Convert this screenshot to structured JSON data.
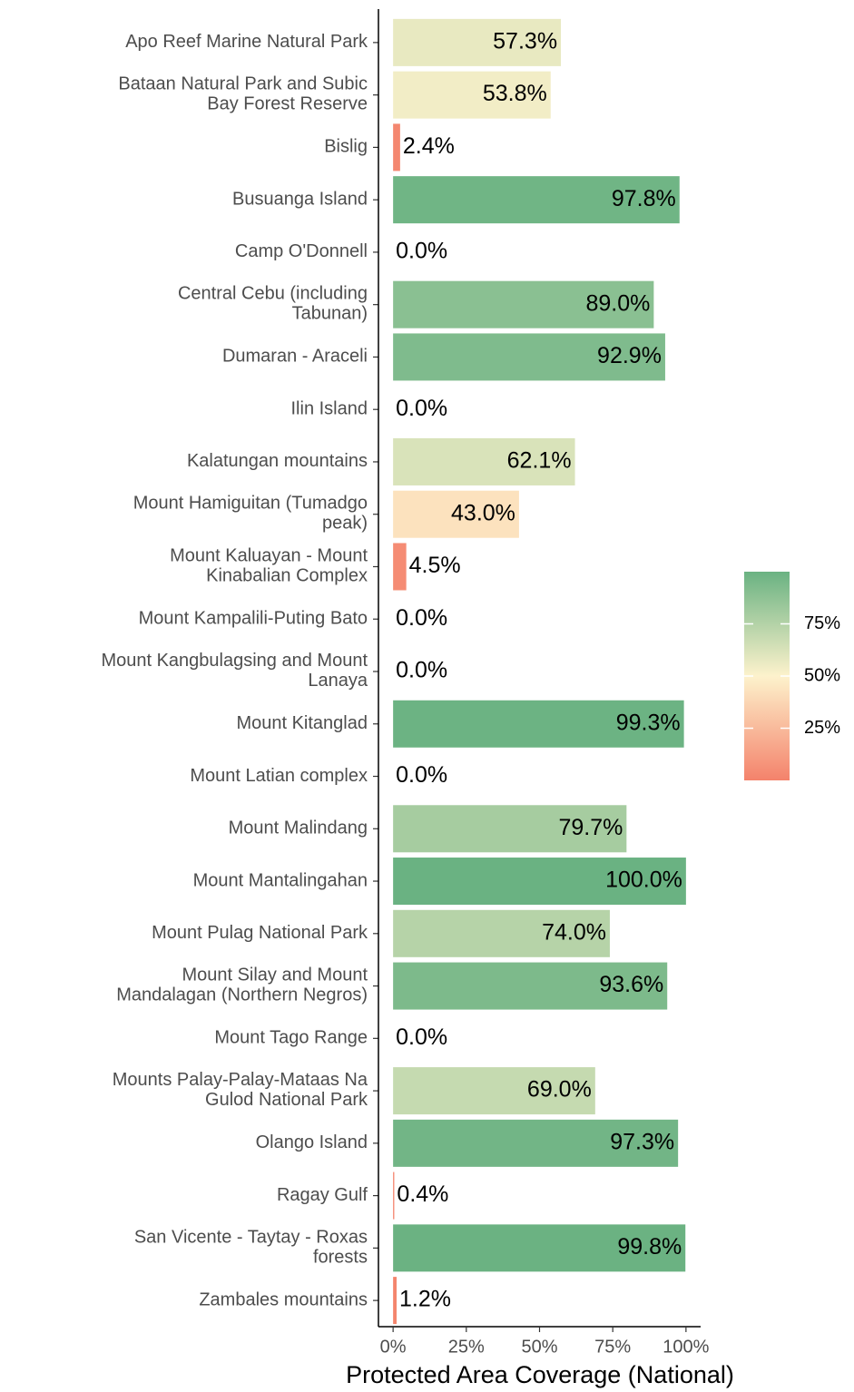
{
  "chart_data": {
    "type": "barh",
    "xlabel": "Protected Area Coverage (National)",
    "categories": [
      "Apo Reef Marine Natural Park",
      "Bataan Natural Park and Subic\nBay Forest Reserve",
      "Bislig",
      "Busuanga Island",
      "Camp O'Donnell",
      "Central Cebu (including\nTabunan)",
      "Dumaran - Araceli",
      "Ilin Island",
      "Kalatungan mountains",
      "Mount Hamiguitan (Tumadgo\npeak)",
      "Mount Kaluayan - Mount\nKinabalian Complex",
      "Mount Kampalili-Puting Bato",
      "Mount Kangbulagsing and Mount\nLanaya",
      "Mount Kitanglad",
      "Mount Latian complex",
      "Mount Malindang",
      "Mount Mantalingahan",
      "Mount Pulag National Park",
      "Mount Silay and Mount\nMandalagan (Northern Negros)",
      "Mount Tago Range",
      "Mounts Palay-Palay-Mataas Na\nGulod National Park",
      "Olango Island",
      "Ragay Gulf",
      "San Vicente - Taytay - Roxas\nforests",
      "Zambales mountains"
    ],
    "values": [
      57.3,
      53.8,
      2.4,
      97.8,
      0.0,
      89.0,
      92.9,
      0.0,
      62.1,
      43.0,
      4.5,
      0.0,
      0.0,
      99.3,
      0.0,
      79.7,
      100.0,
      74.0,
      93.6,
      0.0,
      69.0,
      97.3,
      0.4,
      99.8,
      1.2
    ],
    "value_labels": [
      "57.3%",
      "53.8%",
      "2.4%",
      "97.8%",
      "0.0%",
      "89.0%",
      "92.9%",
      "0.0%",
      "62.1%",
      "43.0%",
      "4.5%",
      "0.0%",
      "0.0%",
      "99.3%",
      "0.0%",
      "79.7%",
      "100.0%",
      "74.0%",
      "93.6%",
      "0.0%",
      "69.0%",
      "97.3%",
      "0.4%",
      "99.8%",
      "1.2%"
    ],
    "xlim": [
      -5,
      105
    ],
    "xticks": [
      {
        "value": 0,
        "label": "0%"
      },
      {
        "value": 25,
        "label": "25%"
      },
      {
        "value": 50,
        "label": "50%"
      },
      {
        "value": 75,
        "label": "75%"
      },
      {
        "value": 100,
        "label": "100%"
      }
    ],
    "colors": {
      "low": "#f4826b",
      "mid": "#fdf2cc",
      "high": "#6ab282"
    },
    "colorbar_lim": [
      0,
      100
    ],
    "colorbar_ticks": [
      {
        "value": 25,
        "label": "25%"
      },
      {
        "value": 50,
        "label": "50%"
      },
      {
        "value": 75,
        "label": "75%"
      }
    ]
  }
}
